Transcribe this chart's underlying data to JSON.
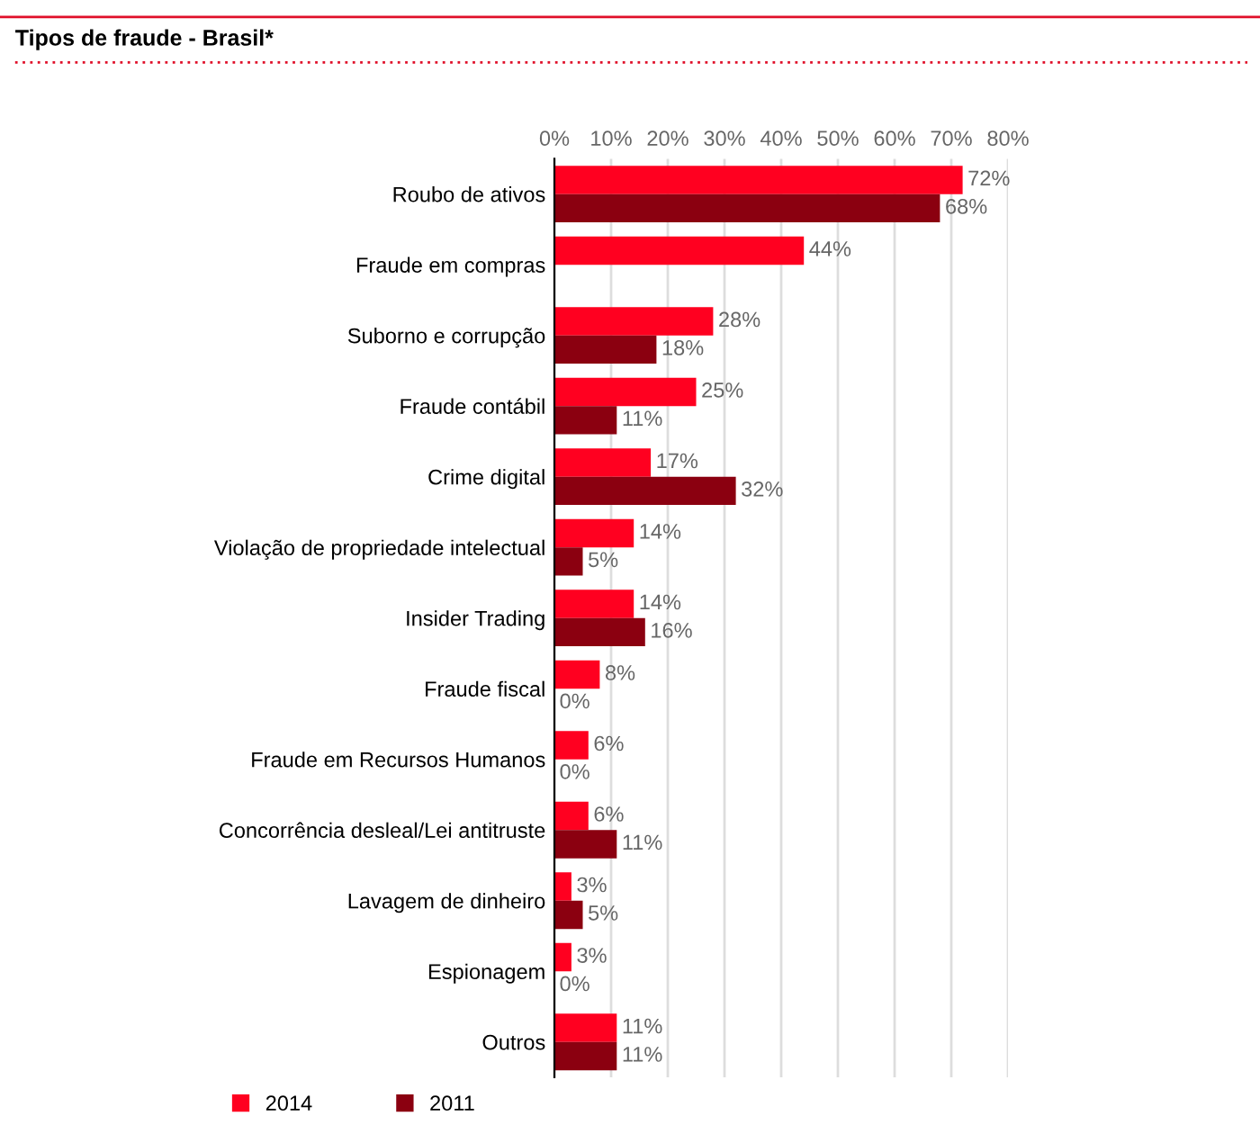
{
  "chart_data": {
    "type": "bar",
    "orientation": "horizontal",
    "title": "Tipos de fraude - Brasil*",
    "categories": [
      "Roubo de ativos",
      "Fraude em compras",
      "Suborno e corrupção",
      "Fraude contábil",
      "Crime digital",
      "Violação de propriedade intelectual",
      "Insider Trading",
      "Fraude fiscal",
      "Fraude em Recursos Humanos",
      "Concorrência desleal/Lei antitruste",
      "Lavagem de dinheiro",
      "Espionagem",
      "Outros"
    ],
    "series": [
      {
        "name": "2014",
        "color": "#ff0020",
        "values": [
          72,
          44,
          28,
          25,
          17,
          14,
          14,
          8,
          6,
          6,
          3,
          3,
          11
        ],
        "value_labels": [
          "72%",
          "44%",
          "28%",
          "25%",
          "17%",
          "14%",
          "14%",
          "8%",
          "6%",
          "6%",
          "3%",
          "3%",
          "11%"
        ]
      },
      {
        "name": "2011",
        "color": "#8b0010",
        "values": [
          68,
          null,
          18,
          11,
          32,
          5,
          16,
          0,
          0,
          11,
          5,
          0,
          11
        ],
        "value_labels": [
          "68%",
          null,
          "18%",
          "11%",
          "32%",
          "5%",
          "16%",
          "0%",
          "0%",
          "11%",
          "5%",
          "0%",
          "11%"
        ]
      }
    ],
    "xlim": [
      0,
      80
    ],
    "xticks": [
      {
        "value": 0,
        "label": "0%"
      },
      {
        "value": 10,
        "label": "10%"
      },
      {
        "value": 20,
        "label": "20%"
      },
      {
        "value": 30,
        "label": "30%"
      },
      {
        "value": 40,
        "label": "40%"
      },
      {
        "value": 50,
        "label": "50%"
      },
      {
        "value": 60,
        "label": "60%"
      },
      {
        "value": 70,
        "label": "70%"
      },
      {
        "value": 80,
        "label": "80%"
      }
    ],
    "grid": "x",
    "legend": "bottom left"
  }
}
